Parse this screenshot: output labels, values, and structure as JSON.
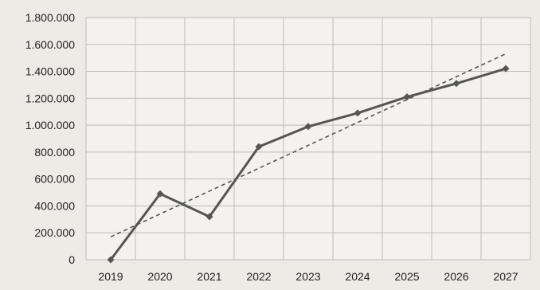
{
  "chart_data": {
    "type": "line",
    "title": "",
    "xlabel": "",
    "ylabel": "",
    "x": [
      "2019",
      "2020",
      "2021",
      "2022",
      "2023",
      "2024",
      "2025",
      "2026",
      "2027"
    ],
    "ylim": [
      0,
      1800000
    ],
    "yticks": [
      0,
      200000,
      400000,
      600000,
      800000,
      1000000,
      1200000,
      1400000,
      1600000,
      1800000
    ],
    "ytick_labels": [
      "0",
      "200.000",
      "400.000",
      "600.000",
      "800.000",
      "1.000.000",
      "1.200.000",
      "1.400.000",
      "1.600.000",
      "1.800.000"
    ],
    "grid": true,
    "legend": false,
    "series": [
      {
        "values": [
          0,
          490000,
          320000,
          840000,
          990000,
          1090000,
          1210000,
          1310000,
          1420000
        ],
        "color": "#555555",
        "marker": "diamond"
      }
    ],
    "trendline": {
      "style": "dashed",
      "color": "#555555",
      "values": [
        170000,
        1530000
      ]
    }
  }
}
